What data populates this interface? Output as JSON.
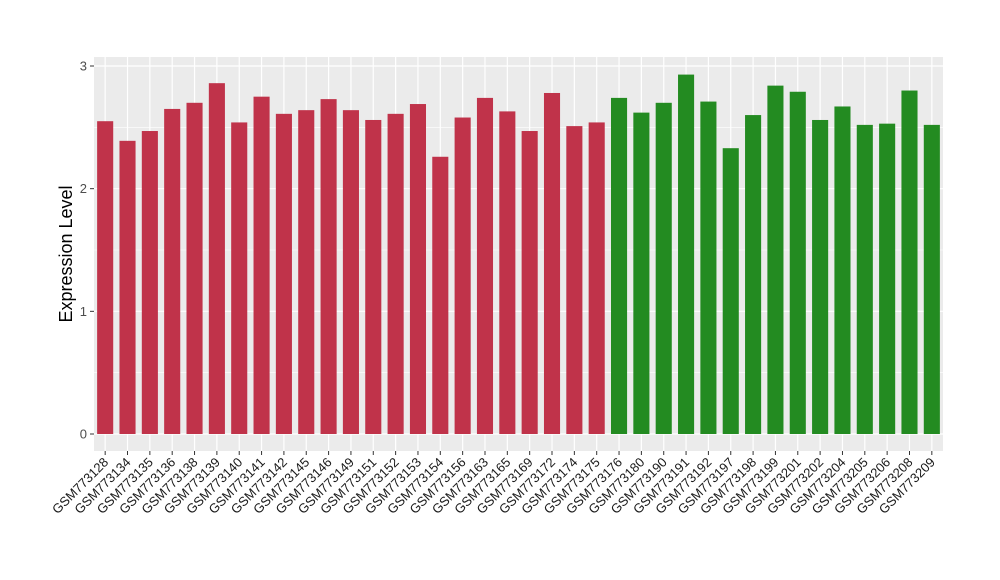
{
  "chart_data": {
    "type": "bar",
    "title": "",
    "xlabel": "",
    "ylabel": "Expression Level",
    "ylim": [
      0,
      3.1
    ],
    "yticks": [
      0,
      1,
      2,
      3
    ],
    "grid": true,
    "legend": "none",
    "colors": {
      "group1": "#c0334a",
      "group2": "#238b21",
      "panel": "#ebebeb",
      "grid": "#ffffff"
    },
    "categories": [
      "GSM773128",
      "GSM773134",
      "GSM773135",
      "GSM773136",
      "GSM773138",
      "GSM773139",
      "GSM773140",
      "GSM773141",
      "GSM773142",
      "GSM773145",
      "GSM773146",
      "GSM773149",
      "GSM773151",
      "GSM773152",
      "GSM773153",
      "GSM773154",
      "GSM773156",
      "GSM773163",
      "GSM773165",
      "GSM773169",
      "GSM773172",
      "GSM773174",
      "GSM773175",
      "GSM773176",
      "GSM773180",
      "GSM773190",
      "GSM773191",
      "GSM773192",
      "GSM773197",
      "GSM773198",
      "GSM773199",
      "GSM773201",
      "GSM773202",
      "GSM773204",
      "GSM773205",
      "GSM773206",
      "GSM773208",
      "GSM773209"
    ],
    "values": [
      2.55,
      2.39,
      2.47,
      2.65,
      2.7,
      2.86,
      2.54,
      2.75,
      2.61,
      2.64,
      2.73,
      2.64,
      2.56,
      2.61,
      2.69,
      2.26,
      2.58,
      2.74,
      2.63,
      2.47,
      2.78,
      2.51,
      2.54,
      2.74,
      2.62,
      2.7,
      2.93,
      2.71,
      2.33,
      2.6,
      2.84,
      2.79,
      2.56,
      2.67,
      2.52,
      2.53,
      2.8,
      2.52
    ],
    "groups": [
      1,
      1,
      1,
      1,
      1,
      1,
      1,
      1,
      1,
      1,
      1,
      1,
      1,
      1,
      1,
      1,
      1,
      1,
      1,
      1,
      1,
      1,
      1,
      2,
      2,
      2,
      2,
      2,
      2,
      2,
      2,
      2,
      2,
      2,
      2,
      2,
      2,
      2
    ]
  }
}
